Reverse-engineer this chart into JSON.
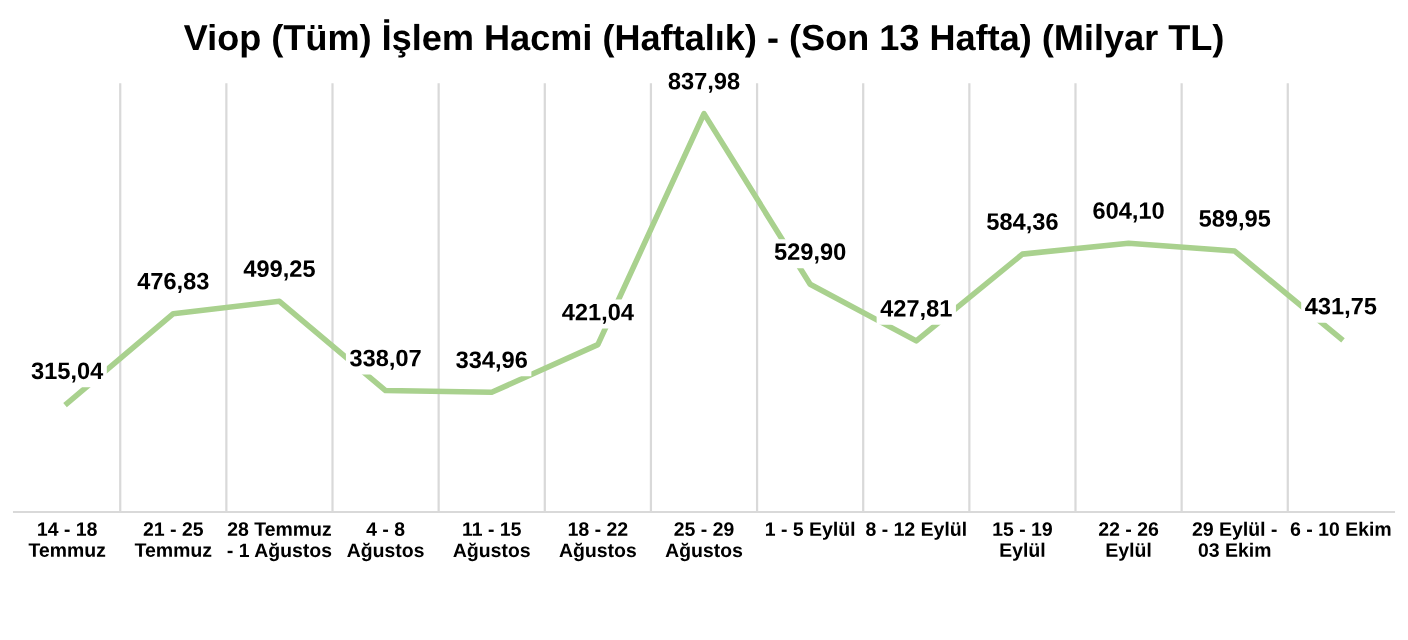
{
  "chart_data": {
    "type": "line",
    "title": "Viop (Tüm) İşlem Hacmi (Haftalık) - (Son 13 Hafta) (Milyar TL)",
    "categories": [
      "14 - 18\nTemmuz",
      "21 - 25\nTemmuz",
      "28 Temmuz\n- 1 Ağustos",
      "4 - 8\nAğustos",
      "11 - 15\nAğustos",
      "18 - 22\nAğustos",
      "25 - 29\nAğustos",
      "1 - 5 Eylül",
      "8 - 12 Eylül",
      "15 - 19\nEylül",
      "22 - 26\nEylül",
      "29 Eylül -\n03 Ekim",
      "6 - 10 Ekim"
    ],
    "series": [
      {
        "color": "#a9d18e",
        "values": [
          315.04,
          476.83,
          499.25,
          338.07,
          334.96,
          421.04,
          837.98,
          529.9,
          427.81,
          584.36,
          604.1,
          589.95,
          431.75
        ],
        "value_labels": [
          "315,04",
          "476,83",
          "499,25",
          "338,07",
          "334,96",
          "421,04",
          "837,98",
          "529,90",
          "427,81",
          "584,36",
          "604,10",
          "589,95",
          "431,75"
        ]
      }
    ],
    "grid": "x",
    "line_style": "solid",
    "marker": "none"
  }
}
